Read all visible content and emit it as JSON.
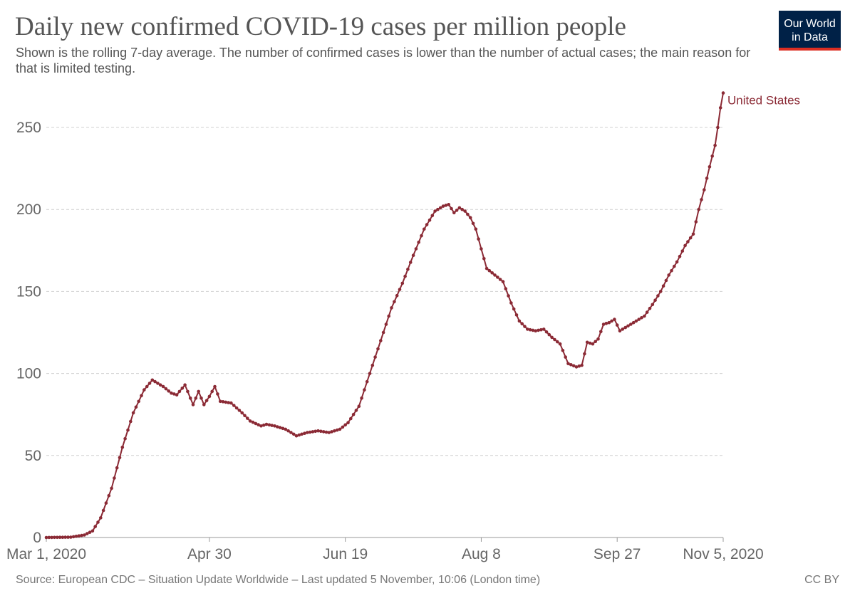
{
  "header": {
    "title": "Daily new confirmed COVID-19 cases per million people",
    "subtitle": "Shown is the rolling 7-day average. The number of confirmed cases is lower than the number of actual cases; the main reason for that is limited testing."
  },
  "logo": {
    "line1": "Our World",
    "line2": "in Data",
    "bg": "#002147",
    "accent": "#dc2e22"
  },
  "footer": {
    "source": "Source: European CDC – Situation Update Worldwide – Last updated 5 November, 10:06 (London time)",
    "license": "CC BY"
  },
  "chart_data": {
    "type": "line",
    "title": "Daily new confirmed COVID-19 cases per million people",
    "x_start": "2020-03-01",
    "x_end": "2020-11-05",
    "xticks": [
      {
        "date": "2020-03-01",
        "label": "Mar 1, 2020"
      },
      {
        "date": "2020-04-30",
        "label": "Apr 30"
      },
      {
        "date": "2020-06-19",
        "label": "Jun 19"
      },
      {
        "date": "2020-08-08",
        "label": "Aug 8"
      },
      {
        "date": "2020-09-27",
        "label": "Sep 27"
      },
      {
        "date": "2020-11-05",
        "label": "Nov 5, 2020"
      }
    ],
    "ylim": [
      0,
      270
    ],
    "yticks": [
      0,
      50,
      100,
      150,
      200,
      250
    ],
    "grid": true,
    "series": [
      {
        "name": "United States",
        "color": "#8b2a35",
        "anchors": [
          [
            "2020-03-01",
            0
          ],
          [
            "2020-03-10",
            0.2
          ],
          [
            "2020-03-15",
            1.5
          ],
          [
            "2020-03-18",
            4
          ],
          [
            "2020-03-21",
            12
          ],
          [
            "2020-03-25",
            30
          ],
          [
            "2020-03-29",
            55
          ],
          [
            "2020-04-02",
            76
          ],
          [
            "2020-04-06",
            90
          ],
          [
            "2020-04-09",
            96
          ],
          [
            "2020-04-13",
            92
          ],
          [
            "2020-04-16",
            88
          ],
          [
            "2020-04-18",
            87
          ],
          [
            "2020-04-21",
            93
          ],
          [
            "2020-04-24",
            81
          ],
          [
            "2020-04-26",
            89
          ],
          [
            "2020-04-28",
            81
          ],
          [
            "2020-04-30",
            86
          ],
          [
            "2020-05-02",
            92
          ],
          [
            "2020-05-04",
            83
          ],
          [
            "2020-05-08",
            82
          ],
          [
            "2020-05-12",
            76
          ],
          [
            "2020-05-15",
            71
          ],
          [
            "2020-05-19",
            68
          ],
          [
            "2020-05-21",
            69
          ],
          [
            "2020-05-24",
            68
          ],
          [
            "2020-05-28",
            66
          ],
          [
            "2020-06-01",
            62
          ],
          [
            "2020-06-05",
            64
          ],
          [
            "2020-06-09",
            65
          ],
          [
            "2020-06-13",
            64
          ],
          [
            "2020-06-17",
            66
          ],
          [
            "2020-06-20",
            70
          ],
          [
            "2020-06-24",
            80
          ],
          [
            "2020-06-28",
            100
          ],
          [
            "2020-07-02",
            120
          ],
          [
            "2020-07-06",
            140
          ],
          [
            "2020-07-10",
            155
          ],
          [
            "2020-07-14",
            172
          ],
          [
            "2020-07-18",
            188
          ],
          [
            "2020-07-22",
            199
          ],
          [
            "2020-07-25",
            202
          ],
          [
            "2020-07-27",
            203
          ],
          [
            "2020-07-29",
            198
          ],
          [
            "2020-07-31",
            201
          ],
          [
            "2020-08-02",
            199
          ],
          [
            "2020-08-04",
            195
          ],
          [
            "2020-08-06",
            188
          ],
          [
            "2020-08-08",
            176
          ],
          [
            "2020-08-10",
            164
          ],
          [
            "2020-08-13",
            160
          ],
          [
            "2020-08-16",
            156
          ],
          [
            "2020-08-19",
            143
          ],
          [
            "2020-08-22",
            132
          ],
          [
            "2020-08-25",
            127
          ],
          [
            "2020-08-28",
            126
          ],
          [
            "2020-08-31",
            127
          ],
          [
            "2020-09-03",
            122
          ],
          [
            "2020-09-06",
            118
          ],
          [
            "2020-09-09",
            106
          ],
          [
            "2020-09-12",
            104
          ],
          [
            "2020-09-14",
            105
          ],
          [
            "2020-09-16",
            119
          ],
          [
            "2020-09-18",
            118
          ],
          [
            "2020-09-20",
            121
          ],
          [
            "2020-09-22",
            130
          ],
          [
            "2020-09-24",
            131
          ],
          [
            "2020-09-26",
            133
          ],
          [
            "2020-09-28",
            126
          ],
          [
            "2020-10-01",
            129
          ],
          [
            "2020-10-04",
            132
          ],
          [
            "2020-10-07",
            135
          ],
          [
            "2020-10-10",
            142
          ],
          [
            "2020-10-13",
            150
          ],
          [
            "2020-10-16",
            160
          ],
          [
            "2020-10-19",
            168
          ],
          [
            "2020-10-22",
            178
          ],
          [
            "2020-10-25",
            185
          ],
          [
            "2020-10-27",
            200
          ],
          [
            "2020-10-29",
            212
          ],
          [
            "2020-10-31",
            226
          ],
          [
            "2020-11-02",
            239
          ],
          [
            "2020-11-03",
            250
          ],
          [
            "2020-11-04",
            262
          ],
          [
            "2020-11-05",
            271
          ]
        ]
      }
    ]
  }
}
